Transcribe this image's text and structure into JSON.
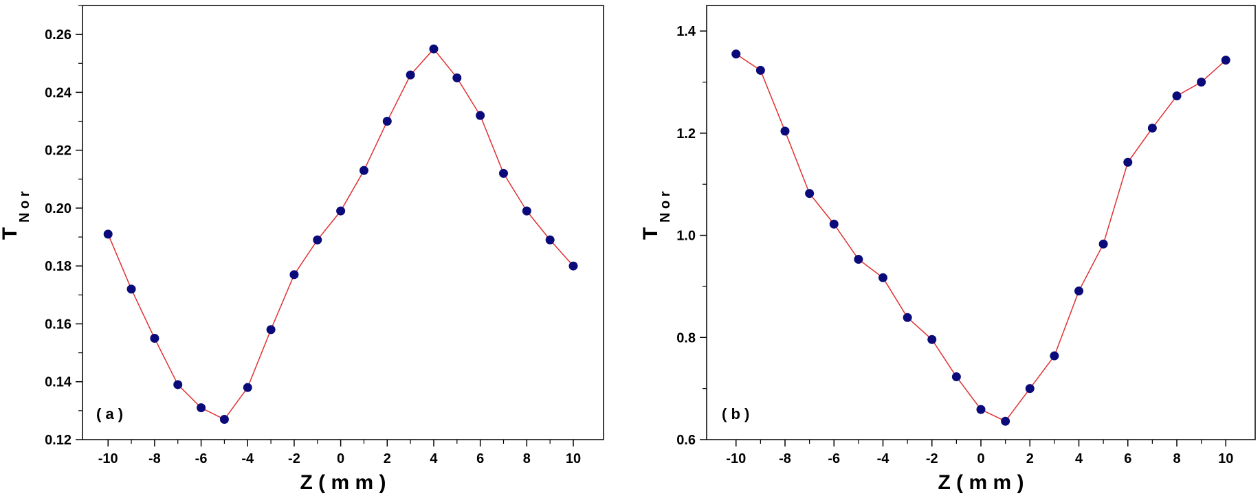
{
  "chart_data": [
    {
      "type": "line",
      "panel_label": "( a )",
      "xlabel": "Z ( m m )",
      "ylabel_main": "T",
      "ylabel_sub": "N o r",
      "xlim": [
        -11.1,
        11.3
      ],
      "ylim": [
        0.12,
        0.27
      ],
      "xticks": [
        -10,
        -8,
        -6,
        -4,
        -2,
        0,
        2,
        4,
        6,
        8,
        10
      ],
      "xtick_labels": [
        "-10",
        "-8",
        "-6",
        "-4",
        "-2",
        "0",
        "2",
        "4",
        "6",
        "8",
        "10"
      ],
      "yticks": [
        0.12,
        0.14,
        0.16,
        0.18,
        0.2,
        0.22,
        0.24,
        0.26
      ],
      "ytick_labels": [
        "0.12",
        "0.14",
        "0.16",
        "0.18",
        "0.20",
        "0.22",
        "0.24",
        "0.26"
      ],
      "line_color": "#e03030",
      "marker_color": "#0a0a7a",
      "series": [
        {
          "x": [
            -10,
            -9,
            -8,
            -7,
            -6,
            -5,
            -4,
            -3,
            -2,
            -1,
            0,
            1,
            2,
            3,
            4,
            5,
            6,
            7,
            8,
            9,
            10
          ],
          "values": [
            0.191,
            0.172,
            0.155,
            0.139,
            0.131,
            0.127,
            0.138,
            0.158,
            0.177,
            0.189,
            0.199,
            0.213,
            0.23,
            0.246,
            0.255,
            0.245,
            0.232,
            0.212,
            0.199,
            0.189,
            0.18
          ]
        }
      ]
    },
    {
      "type": "line",
      "panel_label": "( b )",
      "xlabel": "Z ( m m )",
      "ylabel_main": "T",
      "ylabel_sub": "N o r",
      "xlim": [
        -11.2,
        11.2
      ],
      "ylim": [
        0.6,
        1.45
      ],
      "xticks": [
        -10,
        -8,
        -6,
        -4,
        -2,
        0,
        2,
        4,
        6,
        8,
        10
      ],
      "xtick_labels": [
        "-10",
        "-8",
        "-6",
        "-4",
        "-2",
        "0",
        "2",
        "4",
        "6",
        "8",
        "10"
      ],
      "yticks": [
        0.6,
        0.8,
        1.0,
        1.2,
        1.4
      ],
      "ytick_labels": [
        "0.6",
        "0.8",
        "1.0",
        "1.2",
        "1.4"
      ],
      "line_color": "#e03030",
      "marker_color": "#0a0a7a",
      "series": [
        {
          "x": [
            -10,
            -9,
            -8,
            -7,
            -6,
            -5,
            -4,
            -3,
            -2,
            -1,
            0,
            1,
            2,
            3,
            4,
            5,
            6,
            7,
            8,
            9,
            10
          ],
          "values": [
            1.355,
            1.323,
            1.204,
            1.082,
            1.022,
            0.953,
            0.917,
            0.839,
            0.796,
            0.723,
            0.659,
            0.636,
            0.7,
            0.764,
            0.891,
            0.983,
            1.143,
            1.21,
            1.273,
            1.3,
            1.343
          ]
        }
      ]
    }
  ]
}
